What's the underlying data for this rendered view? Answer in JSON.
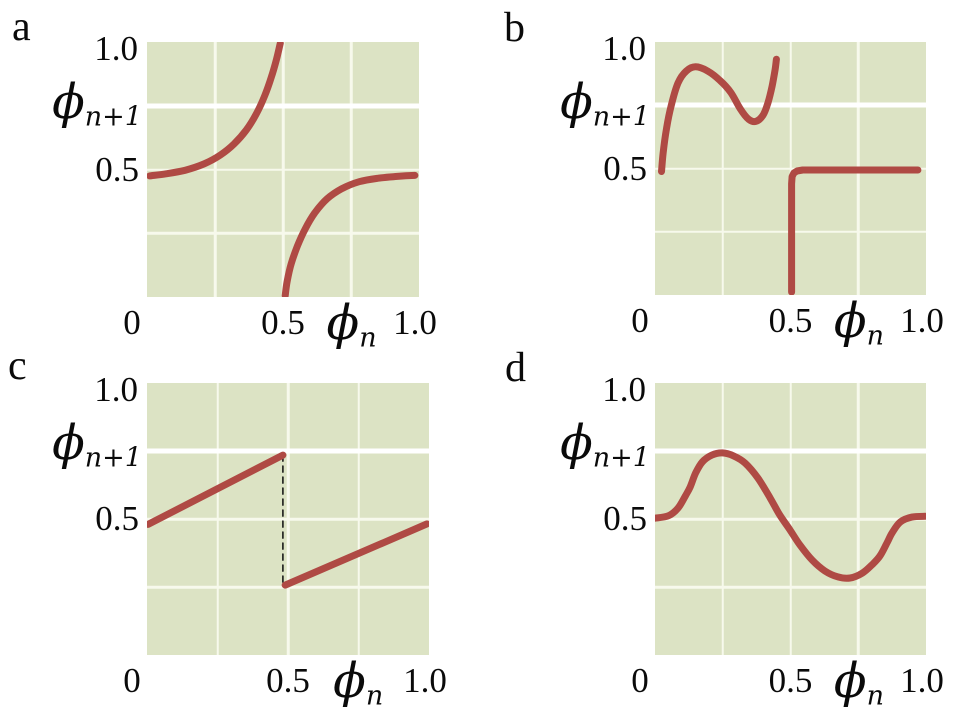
{
  "figure": {
    "background": "#ffffff",
    "text_color": "#0a0a0a"
  },
  "style": {
    "plot_bg": "#dce3c4",
    "grid_color": "#f7f9ec",
    "grid_color_major": "#ffffff",
    "curve_color": "#af4a44",
    "curve_width": 7,
    "dash_color": "#1a1a1a"
  },
  "panels": [
    {
      "label": "a"
    },
    {
      "label": "b"
    },
    {
      "label": "c"
    },
    {
      "label": "d"
    }
  ],
  "axes": {
    "y_tick_top": "1.0",
    "y_tick_mid": "0.5",
    "x_tick_zero": "0",
    "x_tick_mid": "0.5",
    "x_tick_max": "1.0",
    "y_title_sym": "ϕ",
    "y_title_sub": "n+1",
    "x_title_sym": "ϕ",
    "x_title_sub": "n"
  },
  "chart_data": [
    {
      "panel": "a",
      "type": "line",
      "title": "",
      "xlabel": "ϕ_n",
      "ylabel": "ϕ_n+1",
      "xlim": [
        0,
        1
      ],
      "ylim": [
        0,
        1
      ],
      "x_ticks": [
        0,
        0.5,
        1.0
      ],
      "y_ticks": [
        0.5,
        1.0
      ],
      "gridlines_x": [
        0.25,
        0.5,
        0.75
      ],
      "gridlines_y": [
        0.25,
        0.5,
        0.75
      ],
      "series": [
        {
          "name": "left-branch",
          "smooth": true,
          "stroke": "#af4a44",
          "width": 7,
          "points": [
            [
              0.01,
              0.475
            ],
            [
              0.07,
              0.483
            ],
            [
              0.14,
              0.497
            ],
            [
              0.21,
              0.522
            ],
            [
              0.27,
              0.557
            ],
            [
              0.32,
              0.6
            ],
            [
              0.365,
              0.655
            ],
            [
              0.402,
              0.718
            ],
            [
              0.433,
              0.79
            ],
            [
              0.457,
              0.862
            ],
            [
              0.476,
              0.932
            ],
            [
              0.49,
              0.995
            ]
          ]
        },
        {
          "name": "right-branch",
          "smooth": true,
          "stroke": "#af4a44",
          "width": 7,
          "points": [
            [
              0.508,
              0.005
            ],
            [
              0.515,
              0.06
            ],
            [
              0.53,
              0.13
            ],
            [
              0.553,
              0.2
            ],
            [
              0.582,
              0.268
            ],
            [
              0.617,
              0.33
            ],
            [
              0.662,
              0.385
            ],
            [
              0.717,
              0.425
            ],
            [
              0.78,
              0.452
            ],
            [
              0.85,
              0.466
            ],
            [
              0.92,
              0.473
            ],
            [
              0.985,
              0.477
            ]
          ]
        }
      ]
    },
    {
      "panel": "b",
      "type": "line",
      "title": "",
      "xlabel": "ϕ_n",
      "ylabel": "ϕ_n+1",
      "xlim": [
        0,
        1
      ],
      "ylim": [
        0,
        1
      ],
      "x_ticks": [
        0,
        0.5,
        1.0
      ],
      "y_ticks": [
        0.5,
        1.0
      ],
      "gridlines_x": [
        0.25,
        0.5,
        0.75
      ],
      "gridlines_y": [
        0.25,
        0.5,
        0.75
      ],
      "series": [
        {
          "name": "wiggle-branch",
          "smooth": true,
          "stroke": "#af4a44",
          "width": 7,
          "points": [
            [
              0.024,
              0.488
            ],
            [
              0.03,
              0.56
            ],
            [
              0.042,
              0.655
            ],
            [
              0.06,
              0.75
            ],
            [
              0.085,
              0.838
            ],
            [
              0.115,
              0.885
            ],
            [
              0.15,
              0.902
            ],
            [
              0.195,
              0.885
            ],
            [
              0.24,
              0.848
            ],
            [
              0.28,
              0.8
            ],
            [
              0.315,
              0.735
            ],
            [
              0.345,
              0.695
            ],
            [
              0.372,
              0.686
            ],
            [
              0.398,
              0.71
            ],
            [
              0.417,
              0.76
            ],
            [
              0.432,
              0.825
            ],
            [
              0.443,
              0.89
            ],
            [
              0.448,
              0.932
            ]
          ]
        },
        {
          "name": "step-branch",
          "smooth": false,
          "stroke": "#af4a44",
          "width": 7,
          "points": [
            [
              0.504,
              0.012
            ],
            [
              0.504,
              0.44
            ],
            [
              0.506,
              0.468
            ],
            [
              0.512,
              0.482
            ],
            [
              0.524,
              0.49
            ],
            [
              0.545,
              0.494
            ],
            [
              0.97,
              0.494
            ]
          ]
        }
      ]
    },
    {
      "panel": "c",
      "type": "line",
      "title": "",
      "xlabel": "ϕ_n",
      "ylabel": "ϕ_n+1",
      "xlim": [
        0,
        1
      ],
      "ylim": [
        0,
        1
      ],
      "x_ticks": [
        0,
        0.5,
        1.0
      ],
      "y_ticks": [
        0.5,
        1.0
      ],
      "gridlines_x": [
        0.25,
        0.5,
        0.75
      ],
      "gridlines_y": [
        0.25,
        0.5,
        0.75
      ],
      "series": [
        {
          "name": "discontinuity-dashed",
          "smooth": false,
          "stroke": "#1a1a1a",
          "width": 1.6,
          "dash": "6 5",
          "points": [
            [
              0.482,
              0.735
            ],
            [
              0.482,
              0.257
            ]
          ]
        },
        {
          "name": "left-segment",
          "smooth": false,
          "stroke": "#af4a44",
          "width": 7,
          "points": [
            [
              0.004,
              0.48
            ],
            [
              0.482,
              0.735
            ]
          ]
        },
        {
          "name": "right-segment",
          "smooth": false,
          "stroke": "#af4a44",
          "width": 7,
          "points": [
            [
              0.49,
              0.257
            ],
            [
              0.993,
              0.482
            ]
          ]
        }
      ]
    },
    {
      "panel": "d",
      "type": "line",
      "title": "",
      "xlabel": "ϕ_n",
      "ylabel": "ϕ_n+1",
      "xlim": [
        0,
        1
      ],
      "ylim": [
        0,
        1
      ],
      "x_ticks": [
        0,
        0.5,
        1.0
      ],
      "y_ticks": [
        0.5,
        1.0
      ],
      "gridlines_x": [
        0.25,
        0.5,
        0.75
      ],
      "gridlines_y": [
        0.25,
        0.5,
        0.75
      ],
      "series": [
        {
          "name": "smooth-wave",
          "smooth": true,
          "stroke": "#af4a44",
          "width": 7,
          "points": [
            [
              0.0,
              0.503
            ],
            [
              0.05,
              0.512
            ],
            [
              0.085,
              0.54
            ],
            [
              0.112,
              0.585
            ],
            [
              0.13,
              0.618
            ],
            [
              0.15,
              0.669
            ],
            [
              0.175,
              0.71
            ],
            [
              0.21,
              0.735
            ],
            [
              0.248,
              0.743
            ],
            [
              0.29,
              0.732
            ],
            [
              0.333,
              0.705
            ],
            [
              0.38,
              0.65
            ],
            [
              0.425,
              0.577
            ],
            [
              0.46,
              0.515
            ],
            [
              0.498,
              0.46
            ],
            [
              0.535,
              0.404
            ],
            [
              0.58,
              0.349
            ],
            [
              0.627,
              0.309
            ],
            [
              0.675,
              0.287
            ],
            [
              0.72,
              0.283
            ],
            [
              0.765,
              0.301
            ],
            [
              0.8,
              0.331
            ],
            [
              0.83,
              0.364
            ],
            [
              0.856,
              0.412
            ],
            [
              0.875,
              0.449
            ],
            [
              0.905,
              0.489
            ],
            [
              0.948,
              0.507
            ],
            [
              0.997,
              0.51
            ]
          ]
        }
      ]
    }
  ]
}
